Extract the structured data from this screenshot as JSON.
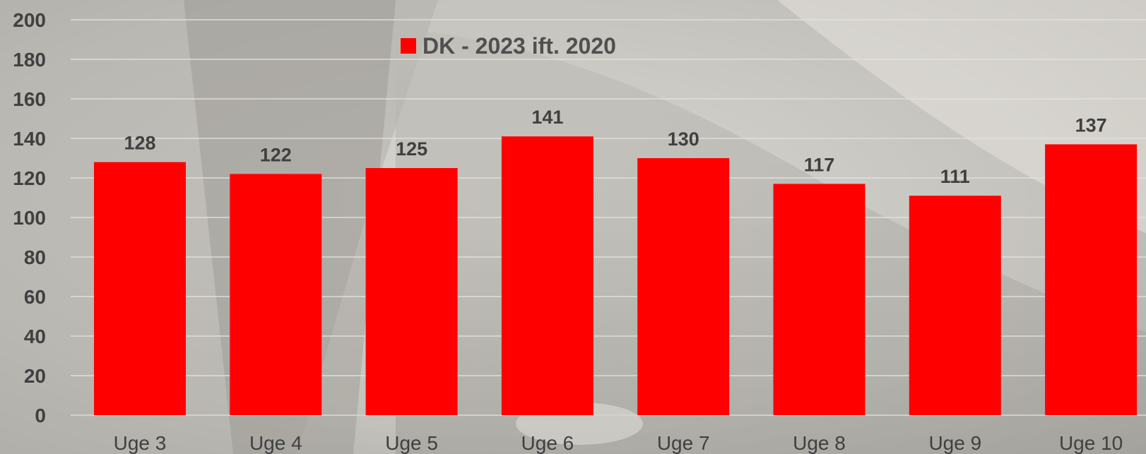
{
  "chart_data": {
    "type": "bar",
    "title": "",
    "xlabel": "",
    "ylabel": "",
    "categories": [
      "Uge 3",
      "Uge 4",
      "Uge 5",
      "Uge 6",
      "Uge 7",
      "Uge 8",
      "Uge 9",
      "Uge 10"
    ],
    "series": [
      {
        "name": "DK - 2023 ift. 2020",
        "values": [
          128,
          122,
          125,
          141,
          130,
          117,
          111,
          137
        ],
        "color": "#ff0000"
      }
    ],
    "ylim": [
      0,
      200
    ],
    "yticks": [
      0,
      20,
      40,
      60,
      80,
      100,
      120,
      140,
      160,
      180,
      200
    ],
    "grid": true,
    "legend": "top-center",
    "data_labels": true,
    "background": "grayscale photograph"
  }
}
